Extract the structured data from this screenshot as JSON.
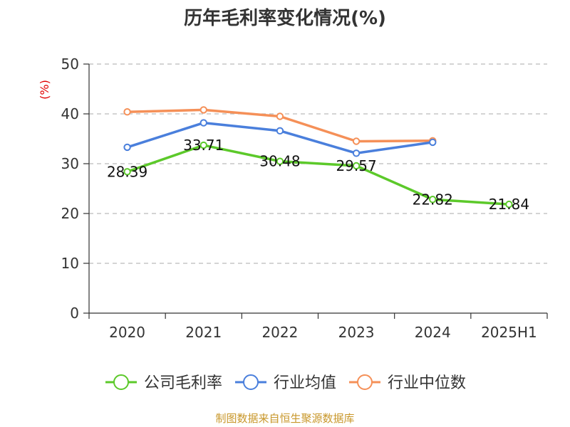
{
  "chart_data": {
    "type": "line",
    "title": "历年毛利率变化情况(%)",
    "ylabel": "(%)",
    "xlabel": "",
    "categories": [
      "2020",
      "2021",
      "2022",
      "2023",
      "2024",
      "2025H1"
    ],
    "ylim": [
      0,
      50
    ],
    "yticks": [
      0,
      10,
      20,
      30,
      40,
      50
    ],
    "grid": "horizontal-dashed",
    "legend_position": "bottom",
    "series": [
      {
        "name": "公司毛利率",
        "color": "#5cc92a",
        "values": [
          28.39,
          33.71,
          30.48,
          29.57,
          22.82,
          21.84
        ],
        "show_labels": true
      },
      {
        "name": "行业均值",
        "color": "#4a7fdc",
        "values": [
          33.3,
          38.2,
          36.6,
          32.1,
          34.3,
          null
        ],
        "show_labels": false
      },
      {
        "name": "行业中位数",
        "color": "#f59058",
        "values": [
          40.4,
          40.8,
          39.5,
          34.5,
          34.6,
          null
        ],
        "show_labels": false
      }
    ]
  },
  "source": "制图数据来自恒生聚源数据库"
}
